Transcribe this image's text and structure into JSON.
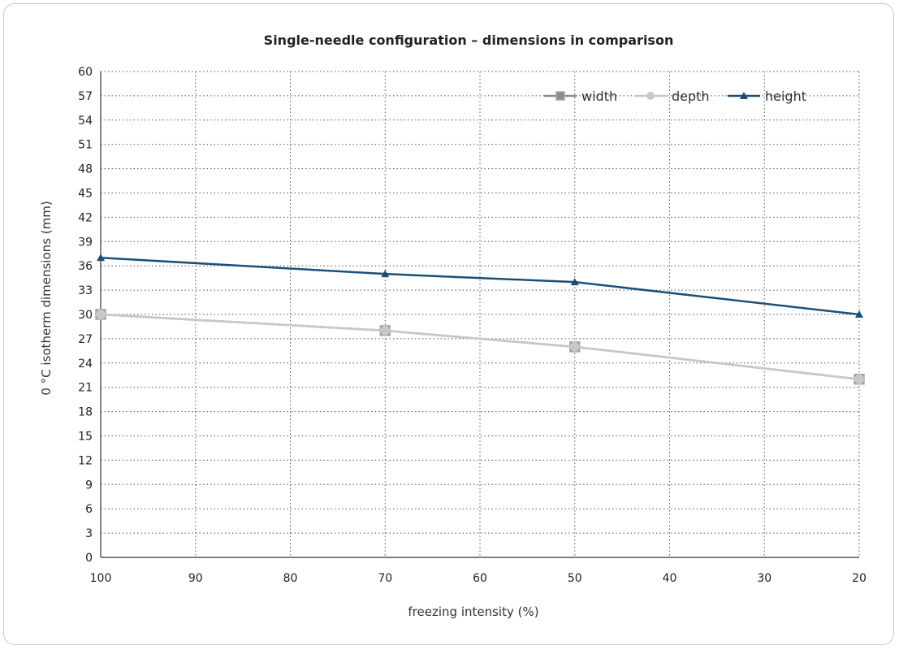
{
  "chart_data": {
    "type": "line",
    "title": "Single-needle configuration – dimensions in comparison",
    "xlabel": "freezing intensity (%)",
    "ylabel": "0 °C isotherm dimensions (mm)",
    "x_ticks": [
      "100",
      "90",
      "80",
      "70",
      "60",
      "50",
      "40",
      "30",
      "20"
    ],
    "y_ticks": [
      "0",
      "3",
      "6",
      "9",
      "12",
      "15",
      "18",
      "21",
      "24",
      "27",
      "30",
      "33",
      "36",
      "39",
      "42",
      "45",
      "48",
      "51",
      "54",
      "57",
      "60"
    ],
    "xlim": [
      100,
      20
    ],
    "ylim": [
      0,
      60
    ],
    "x_reversed": true,
    "grid": true,
    "legend_position": "top-right",
    "series": [
      {
        "name": "width",
        "color": "#8c8c8c",
        "marker": "square",
        "x": [
          100,
          70,
          50,
          20
        ],
        "y": [
          30,
          28,
          26,
          22
        ]
      },
      {
        "name": "depth",
        "color": "#c8c8c8",
        "marker": "circle",
        "x": [
          100,
          70,
          50,
          20
        ],
        "y": [
          30,
          28,
          26,
          22
        ]
      },
      {
        "name": "height",
        "color": "#1b4f7a",
        "marker": "triangle",
        "x": [
          100,
          70,
          50,
          20
        ],
        "y": [
          37,
          35,
          34,
          30
        ]
      }
    ]
  }
}
